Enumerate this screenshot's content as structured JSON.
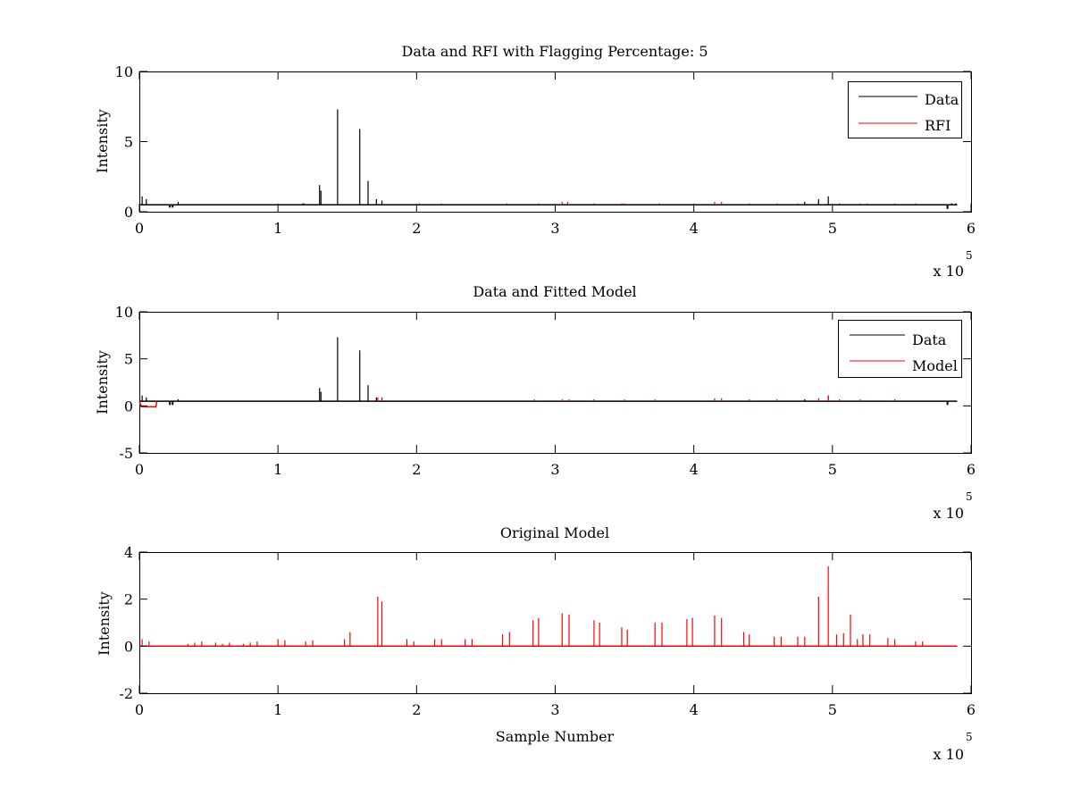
{
  "colors": {
    "data": "#000000",
    "rfi": "#ff0000",
    "model": "#ff0000",
    "background": "#ffffff",
    "axes": "#000000"
  },
  "chart_data": [
    {
      "type": "line",
      "title": "Data and RFI with Flagging Percentage: 5",
      "xlabel": "",
      "ylabel": "Intensity",
      "xlim": [
        0,
        600000
      ],
      "ylim": [
        0,
        10
      ],
      "xticks": [
        "0",
        "1",
        "2",
        "3",
        "4",
        "5",
        "6"
      ],
      "yticks": [
        "0",
        "5",
        "10"
      ],
      "x_exponent_label": "x 10",
      "x_exponent": "5",
      "grid": false,
      "legend": "top-right",
      "baseline": 0.5,
      "x_end": 590000,
      "series": [
        {
          "name": "Data",
          "color": "#000000",
          "spikes": [
            [
              2000,
              1.1
            ],
            [
              5000,
              0.9
            ],
            [
              28000,
              0.7
            ],
            [
              118000,
              0.6
            ],
            [
              130000,
              1.9
            ],
            [
              131000,
              1.5
            ],
            [
              143000,
              7.3
            ],
            [
              159000,
              5.9
            ],
            [
              165000,
              2.2
            ],
            [
              171000,
              0.9
            ],
            [
              175000,
              0.8
            ],
            [
              480000,
              0.7
            ],
            [
              490000,
              0.9
            ],
            [
              497000,
              1.1
            ],
            [
              586000,
              0.6
            ],
            [
              589000,
              0.6
            ]
          ],
          "dips": [
            [
              22000,
              0.3
            ],
            [
              24000,
              0.3
            ],
            [
              583000,
              0.2
            ]
          ]
        },
        {
          "name": "RFI",
          "color": "#ff0000",
          "spikes": [
            [
              119000,
              0.6
            ],
            [
              202000,
              0.6
            ],
            [
              218000,
              0.6
            ],
            [
              265000,
              0.6
            ],
            [
              288000,
              0.6
            ],
            [
              305000,
              0.7
            ],
            [
              309000,
              0.7
            ],
            [
              328000,
              0.6
            ],
            [
              348000,
              0.6
            ],
            [
              350000,
              0.6
            ],
            [
              375000,
              0.6
            ],
            [
              415000,
              0.7
            ],
            [
              420000,
              0.7
            ],
            [
              440000,
              0.6
            ],
            [
              460000,
              0.6
            ],
            [
              475000,
              0.6
            ],
            [
              505000,
              0.6
            ],
            [
              520000,
              0.6
            ],
            [
              525000,
              0.6
            ],
            [
              545000,
              0.6
            ],
            [
              560000,
              0.6
            ]
          ]
        }
      ]
    },
    {
      "type": "line",
      "title": "Data and Fitted Model",
      "xlabel": "",
      "ylabel": "Intensity",
      "xlim": [
        0,
        600000
      ],
      "ylim": [
        -5,
        10
      ],
      "xticks": [
        "0",
        "1",
        "2",
        "3",
        "4",
        "5",
        "6"
      ],
      "yticks": [
        "-5",
        "0",
        "5",
        "10"
      ],
      "x_exponent_label": "x 10",
      "x_exponent": "5",
      "grid": false,
      "legend": "top-right",
      "baseline": 0.5,
      "x_end": 590000,
      "series": [
        {
          "name": "Data",
          "color": "#000000",
          "spikes": [
            [
              2000,
              1.1
            ],
            [
              5000,
              0.9
            ],
            [
              28000,
              0.7
            ],
            [
              130000,
              1.9
            ],
            [
              131000,
              1.5
            ],
            [
              143000,
              7.3
            ],
            [
              159000,
              5.9
            ],
            [
              165000,
              2.2
            ],
            [
              171000,
              0.9
            ],
            [
              175000,
              0.8
            ],
            [
              480000,
              0.7
            ],
            [
              497000,
              1.1
            ]
          ],
          "dips": [
            [
              22000,
              0.1
            ],
            [
              24000,
              0.1
            ],
            [
              583000,
              0.1
            ]
          ]
        },
        {
          "name": "Model",
          "color": "#ff0000",
          "step": [
            [
              0,
              0.5
            ],
            [
              1500,
              -0.1
            ],
            [
              12000,
              -0.1
            ],
            [
              12500,
              0.5
            ]
          ],
          "spikes": [
            [
              172000,
              0.9
            ],
            [
              175000,
              0.9
            ],
            [
              285000,
              0.7
            ],
            [
              305000,
              0.7
            ],
            [
              310000,
              0.7
            ],
            [
              328000,
              0.7
            ],
            [
              350000,
              0.7
            ],
            [
              372000,
              0.7
            ],
            [
              415000,
              0.8
            ],
            [
              420000,
              0.8
            ],
            [
              440000,
              0.7
            ],
            [
              460000,
              0.7
            ],
            [
              490000,
              0.8
            ],
            [
              497000,
              1.1
            ],
            [
              505000,
              0.7
            ],
            [
              520000,
              0.7
            ],
            [
              545000,
              0.7
            ],
            [
              588000,
              0.6
            ]
          ]
        }
      ]
    },
    {
      "type": "line",
      "title": "Original Model",
      "xlabel": "Sample Number",
      "ylabel": "Intensity",
      "xlim": [
        0,
        600000
      ],
      "ylim": [
        -2,
        4
      ],
      "xticks": [
        "0",
        "1",
        "2",
        "3",
        "4",
        "5",
        "6"
      ],
      "yticks": [
        "-2",
        "0",
        "2",
        "4"
      ],
      "x_exponent_label": "x 10",
      "x_exponent": "5",
      "grid": false,
      "baseline": 0,
      "x_end": 590000,
      "series": [
        {
          "color": "#ff0000",
          "spikes": [
            [
              2000,
              0.3
            ],
            [
              7000,
              0.2
            ],
            [
              35000,
              0.1
            ],
            [
              40000,
              0.15
            ],
            [
              45000,
              0.2
            ],
            [
              55000,
              0.15
            ],
            [
              60000,
              0.1
            ],
            [
              65000,
              0.15
            ],
            [
              75000,
              0.1
            ],
            [
              80000,
              0.15
            ],
            [
              85000,
              0.2
            ],
            [
              100000,
              0.3
            ],
            [
              105000,
              0.25
            ],
            [
              120000,
              0.2
            ],
            [
              125000,
              0.25
            ],
            [
              148000,
              0.3
            ],
            [
              152000,
              0.6
            ],
            [
              172000,
              2.1
            ],
            [
              175000,
              1.9
            ],
            [
              193000,
              0.3
            ],
            [
              198000,
              0.2
            ],
            [
              213000,
              0.3
            ],
            [
              218000,
              0.3
            ],
            [
              235000,
              0.3
            ],
            [
              240000,
              0.3
            ],
            [
              262000,
              0.5
            ],
            [
              267000,
              0.6
            ],
            [
              284000,
              1.1
            ],
            [
              288000,
              1.2
            ],
            [
              305000,
              1.4
            ],
            [
              310000,
              1.35
            ],
            [
              328000,
              1.1
            ],
            [
              332000,
              1.0
            ],
            [
              348000,
              0.8
            ],
            [
              352000,
              0.7
            ],
            [
              372000,
              1.0
            ],
            [
              377000,
              1.0
            ],
            [
              395000,
              1.15
            ],
            [
              399000,
              1.2
            ],
            [
              415000,
              1.3
            ],
            [
              420000,
              1.2
            ],
            [
              436000,
              0.6
            ],
            [
              440000,
              0.5
            ],
            [
              458000,
              0.4
            ],
            [
              463000,
              0.4
            ],
            [
              475000,
              0.4
            ],
            [
              480000,
              0.4
            ],
            [
              490000,
              2.1
            ],
            [
              497000,
              3.4
            ],
            [
              503000,
              0.5
            ],
            [
              508000,
              0.55
            ],
            [
              513000,
              1.35
            ],
            [
              518000,
              0.3
            ],
            [
              522000,
              0.5
            ],
            [
              527000,
              0.5
            ],
            [
              540000,
              0.35
            ],
            [
              545000,
              0.3
            ],
            [
              560000,
              0.2
            ],
            [
              565000,
              0.2
            ]
          ]
        }
      ]
    }
  ]
}
